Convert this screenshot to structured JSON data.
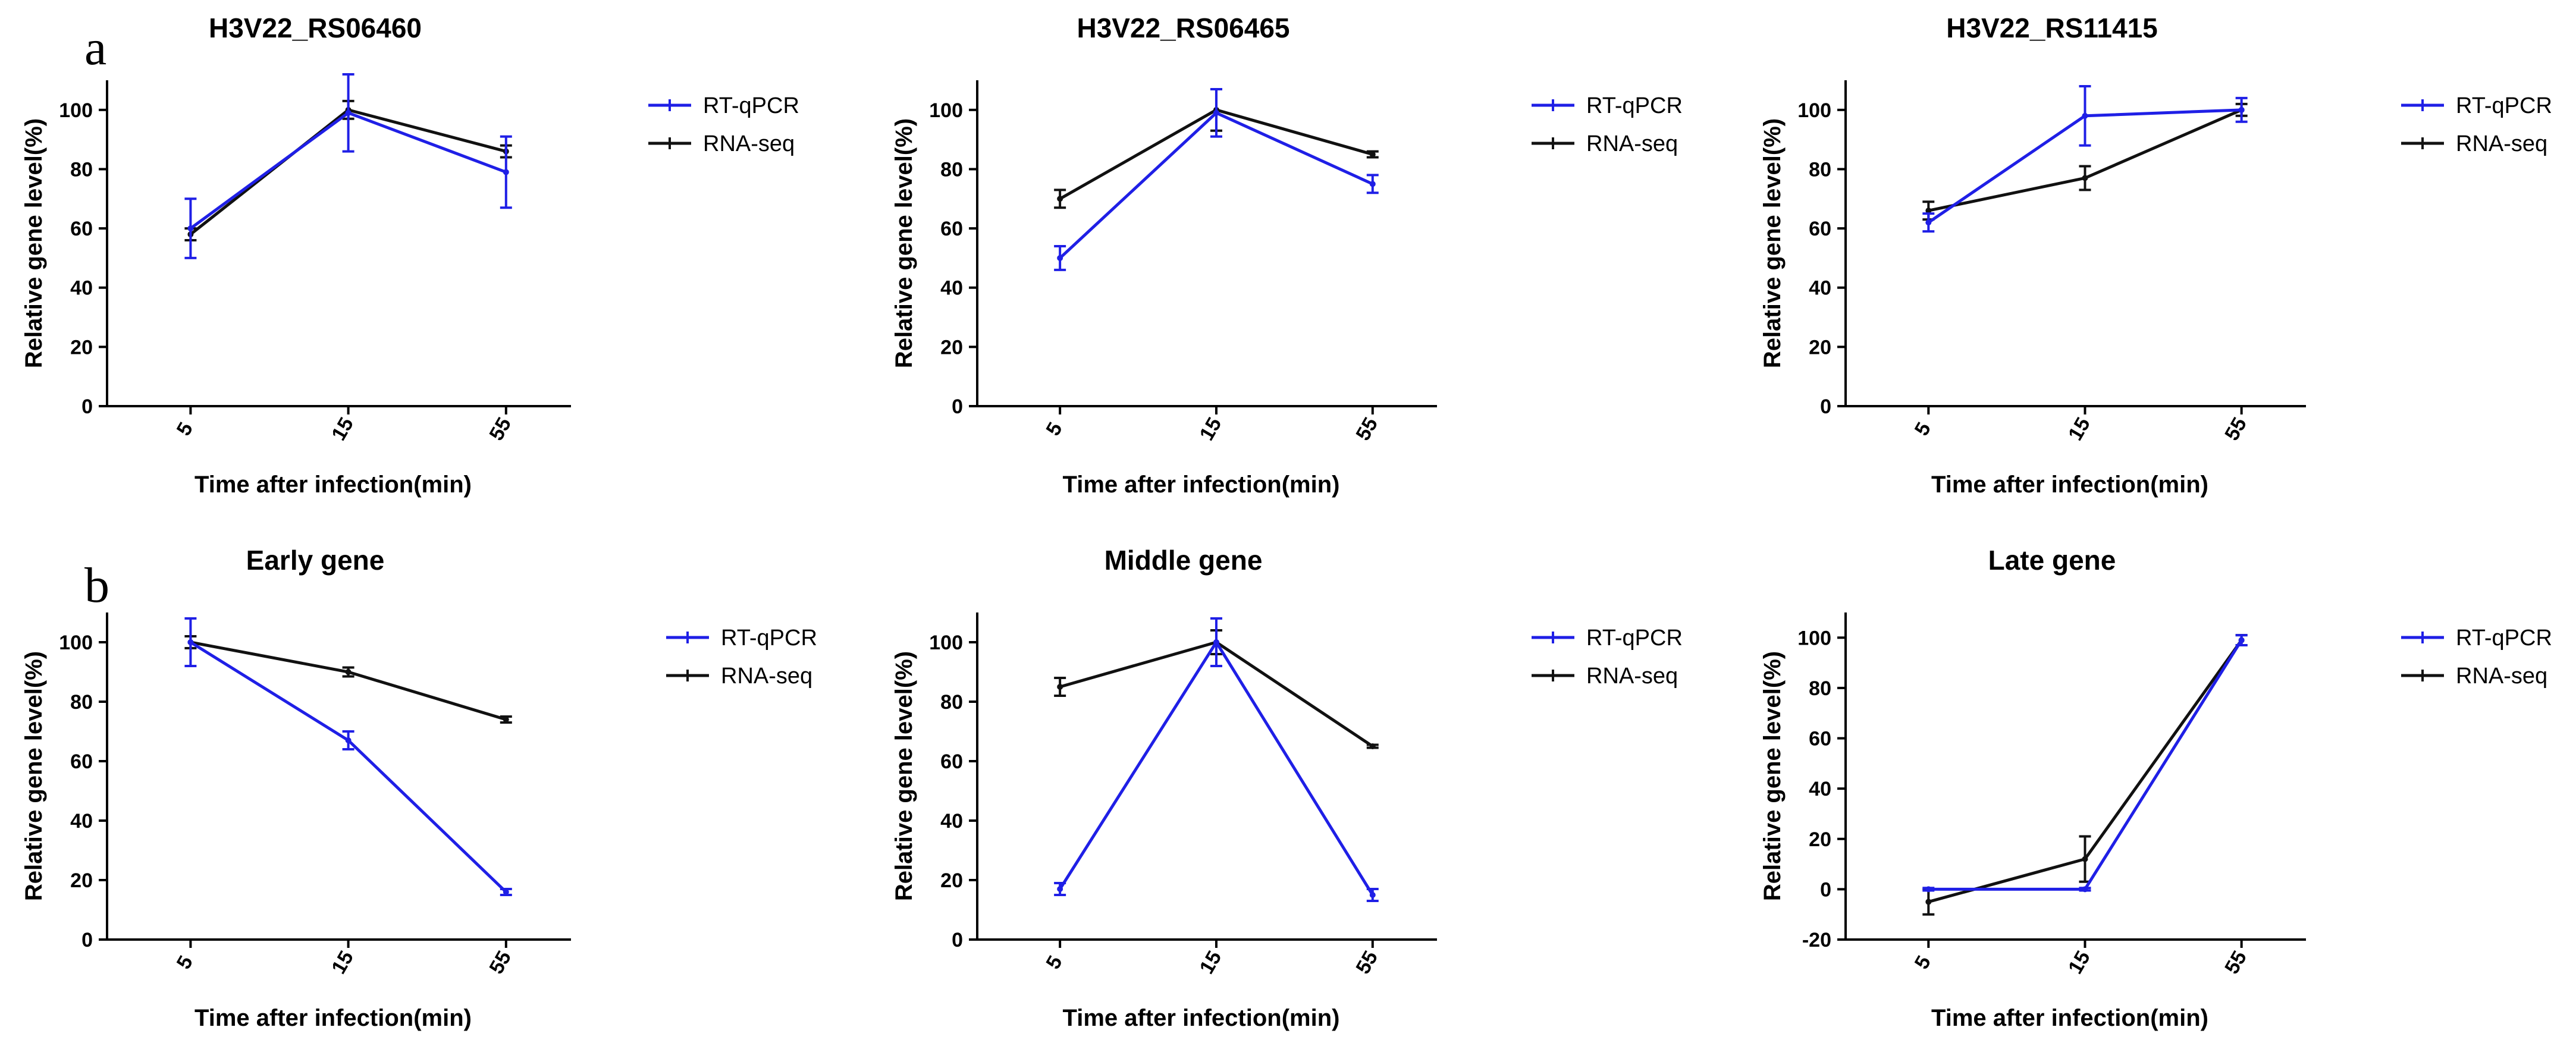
{
  "panel_labels": [
    "a",
    "b"
  ],
  "series_colors": {
    "RT-qPCR": "#1f1fe6",
    "RNA-seq": "#111111"
  },
  "chart_data": [
    {
      "type": "line",
      "panel": "a",
      "title": "H3V22_RS06460",
      "categories": [
        "5",
        "15",
        "55"
      ],
      "xlabel": "Time after infection(min)",
      "ylabel": "Relative gene level(%)",
      "ylim": [
        0,
        110
      ],
      "yticks": [
        0,
        20,
        40,
        60,
        80,
        100
      ],
      "legend": "right",
      "series": [
        {
          "name": "RT-qPCR",
          "values": [
            60,
            99,
            79
          ],
          "errors": [
            10,
            13,
            12
          ]
        },
        {
          "name": "RNA-seq",
          "values": [
            58,
            100,
            86
          ],
          "errors": [
            2,
            3,
            2
          ]
        }
      ]
    },
    {
      "type": "line",
      "panel": "a",
      "title": "H3V22_RS06465",
      "categories": [
        "5",
        "15",
        "55"
      ],
      "xlabel": "Time after infection(min)",
      "ylabel": "Relative gene level(%)",
      "ylim": [
        0,
        110
      ],
      "yticks": [
        0,
        20,
        40,
        60,
        80,
        100
      ],
      "legend": "right",
      "series": [
        {
          "name": "RT-qPCR",
          "values": [
            50,
            99,
            75
          ],
          "errors": [
            4,
            8,
            3
          ]
        },
        {
          "name": "RNA-seq",
          "values": [
            70,
            100,
            85
          ],
          "errors": [
            3,
            7,
            1
          ]
        }
      ]
    },
    {
      "type": "line",
      "panel": "a",
      "title": "H3V22_RS11415",
      "categories": [
        "5",
        "15",
        "55"
      ],
      "xlabel": "Time after infection(min)",
      "ylabel": "Relative gene level(%)",
      "ylim": [
        0,
        110
      ],
      "yticks": [
        0,
        20,
        40,
        60,
        80,
        100
      ],
      "legend": "right",
      "series": [
        {
          "name": "RT-qPCR",
          "values": [
            62,
            98,
            100
          ],
          "errors": [
            3,
            10,
            4
          ]
        },
        {
          "name": "RNA-seq",
          "values": [
            66,
            77,
            100
          ],
          "errors": [
            3,
            4,
            2
          ]
        }
      ]
    },
    {
      "type": "line",
      "panel": "b",
      "title": "Early gene",
      "categories": [
        "5",
        "15",
        "55"
      ],
      "xlabel": "Time after infection(min)",
      "ylabel": "Relative gene level(%)",
      "ylim": [
        0,
        110
      ],
      "yticks": [
        0,
        20,
        40,
        60,
        80,
        100
      ],
      "legend": "right",
      "series": [
        {
          "name": "RT-qPCR",
          "values": [
            100,
            67,
            16
          ],
          "errors": [
            8,
            3,
            1
          ]
        },
        {
          "name": "RNA-seq",
          "values": [
            100,
            90,
            74
          ],
          "errors": [
            2,
            1.5,
            1
          ]
        }
      ]
    },
    {
      "type": "line",
      "panel": "b",
      "title": "Middle gene",
      "categories": [
        "5",
        "15",
        "55"
      ],
      "xlabel": "Time after infection(min)",
      "ylabel": "Relative gene level(%)",
      "ylim": [
        0,
        110
      ],
      "yticks": [
        0,
        20,
        40,
        60,
        80,
        100
      ],
      "legend": "right",
      "series": [
        {
          "name": "RT-qPCR",
          "values": [
            17,
            100,
            15
          ],
          "errors": [
            2,
            8,
            2
          ]
        },
        {
          "name": "RNA-seq",
          "values": [
            85,
            100,
            65
          ],
          "errors": [
            3,
            4,
            0.5
          ]
        }
      ]
    },
    {
      "type": "line",
      "panel": "b",
      "title": "Late gene",
      "categories": [
        "5",
        "15",
        "55"
      ],
      "xlabel": "Time after infection(min)",
      "ylabel": "Relative gene level(%)",
      "ylim": [
        -20,
        110
      ],
      "yticks": [
        -20,
        0,
        20,
        40,
        60,
        80,
        100
      ],
      "legend": "right",
      "series": [
        {
          "name": "RT-qPCR",
          "values": [
            0,
            0,
            99
          ],
          "errors": [
            0.5,
            0.5,
            2
          ]
        },
        {
          "name": "RNA-seq",
          "values": [
            -5,
            12,
            99
          ],
          "errors": [
            5,
            9,
            2
          ]
        }
      ]
    }
  ]
}
